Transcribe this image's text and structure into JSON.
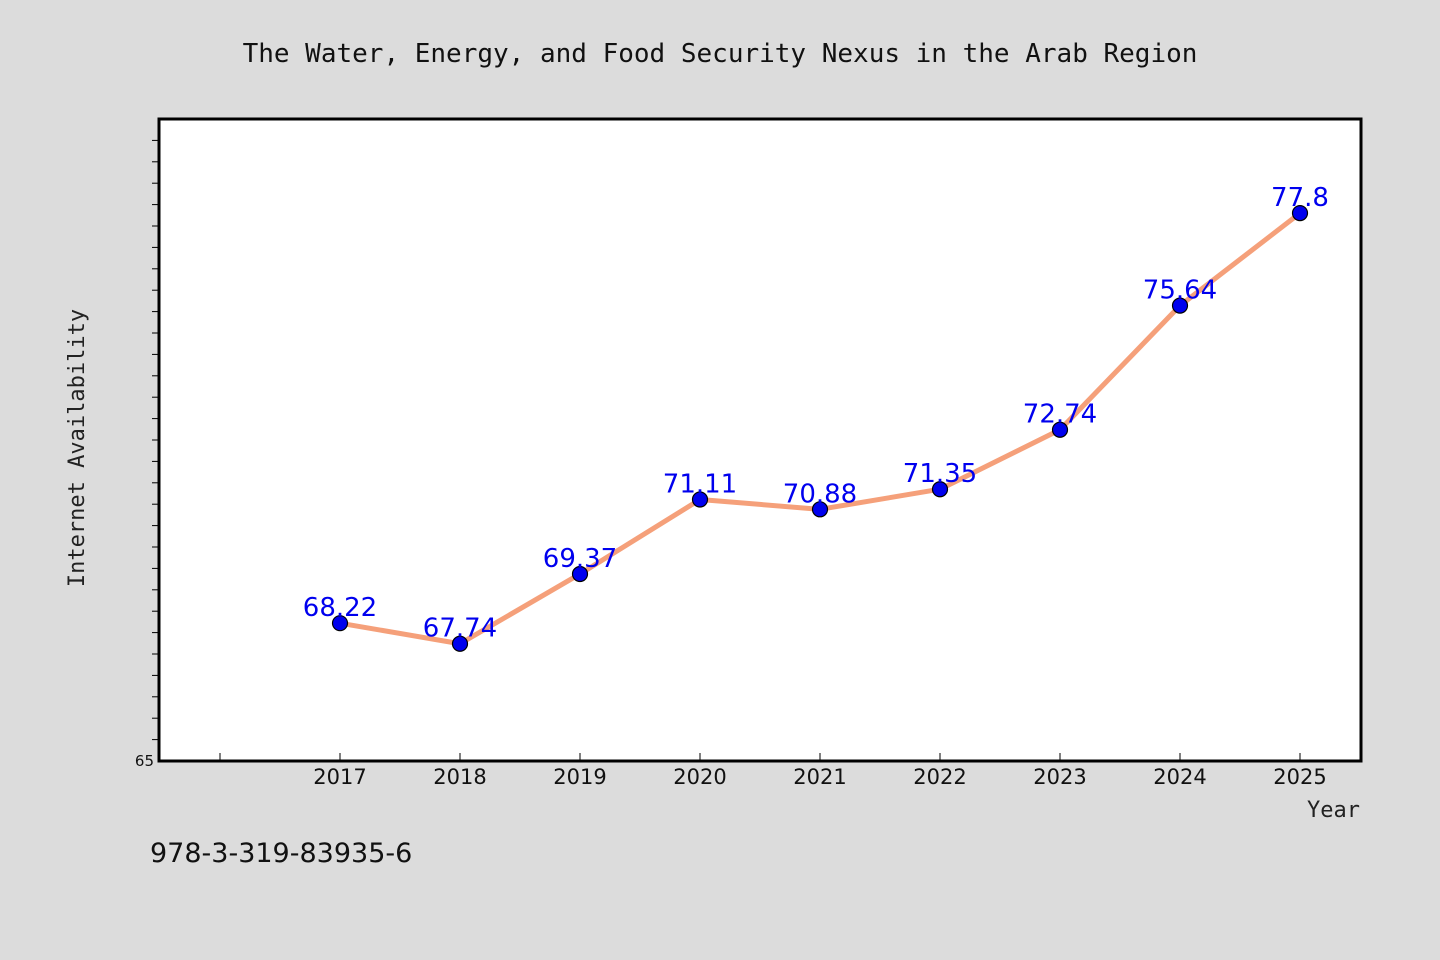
{
  "chart_data": {
    "type": "line",
    "title": "The Water, Energy, and Food Security Nexus in the Arab Region",
    "xlabel": "Year",
    "ylabel": "Internet Availability",
    "x": [
      "2017",
      "2018",
      "2019",
      "2020",
      "2021",
      "2022",
      "2023",
      "2024",
      "2025"
    ],
    "series": [
      {
        "values": [
          68.22,
          67.74,
          69.37,
          71.11,
          70.88,
          71.35,
          72.74,
          75.64,
          77.8
        ]
      }
    ],
    "data_labels": [
      "68.22",
      "67.74",
      "69.37",
      "71.11",
      "70.88",
      "71.35",
      "72.74",
      "75.64",
      "77.8"
    ],
    "ylim": [
      65,
      80
    ],
    "y_tick_labels": [
      "65"
    ],
    "grid": false,
    "line_color": "#f5a07a",
    "marker_color": "#0000ee",
    "label_color": "#0000ee"
  },
  "footer": {
    "isbn": "978-3-319-83935-6"
  }
}
